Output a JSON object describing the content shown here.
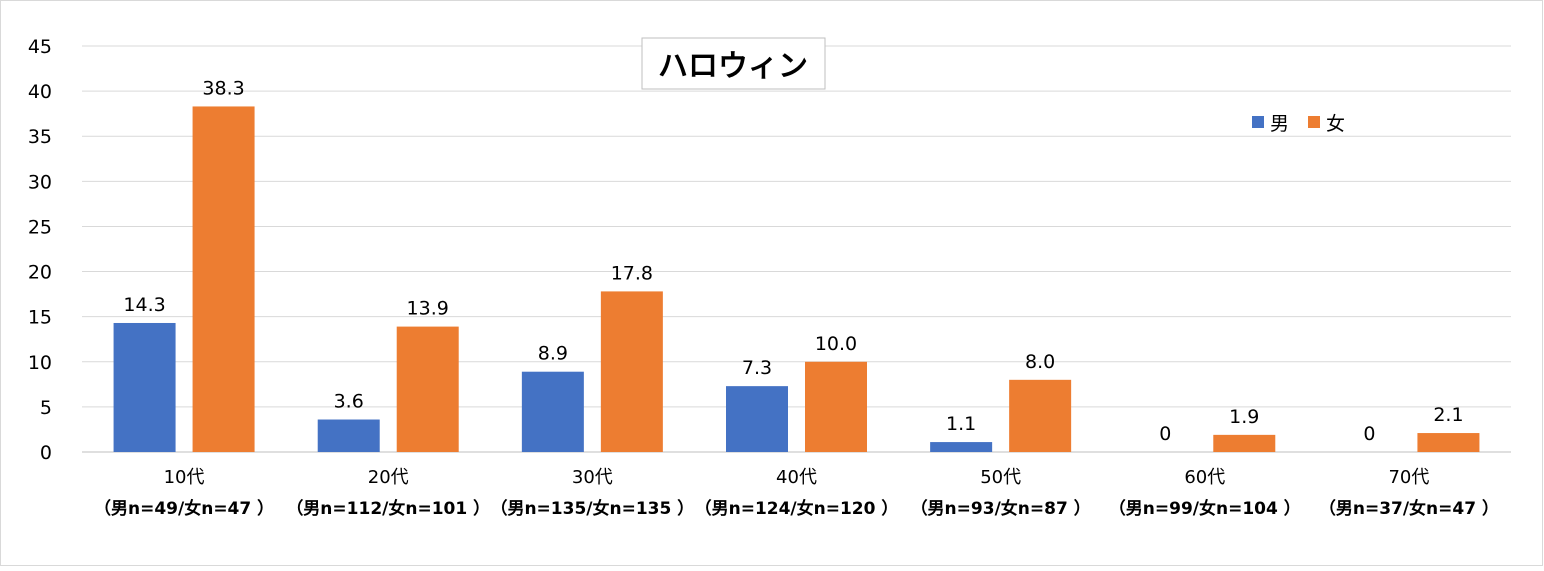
{
  "chart_data": {
    "type": "bar",
    "title": "ハロウィン",
    "categories": [
      "10代",
      "20代",
      "30代",
      "40代",
      "50代",
      "60代",
      "70代"
    ],
    "category_sublabels": [
      "（男n=49/女n=47 ）",
      "（男n=112/女n=101 ）",
      "（男n=135/女n=135 ）",
      "（男n=124/女n=120 ）",
      "（男n=93/女n=87 ）",
      "（男n=99/女n=104 ）",
      "（男n=37/女n=47 ）"
    ],
    "series": [
      {
        "name": "男",
        "color": "#4472C4",
        "values": [
          14.3,
          3.6,
          8.9,
          7.3,
          1.1,
          0,
          0
        ],
        "labels": [
          "14.3",
          "3.6",
          "8.9",
          "7.3",
          "1.1",
          "0",
          "0"
        ]
      },
      {
        "name": "女",
        "color": "#ED7D31",
        "values": [
          38.3,
          13.9,
          17.8,
          10.0,
          8.0,
          1.9,
          2.1
        ],
        "labels": [
          "38.3",
          "13.9",
          "17.8",
          "10.0",
          "8.0",
          "1.9",
          "2.1"
        ]
      }
    ],
    "ylim": [
      0,
      45
    ],
    "yticks": [
      "0",
      "5",
      "10",
      "15",
      "20",
      "25",
      "30",
      "35",
      "40",
      "45"
    ],
    "xlabel": "",
    "ylabel": "",
    "grid": true,
    "legend_position": "top-right"
  }
}
